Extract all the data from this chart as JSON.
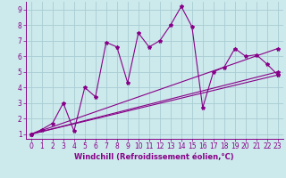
{
  "xlabel": "Windchill (Refroidissement éolien,°C)",
  "ylabel": "",
  "xlim": [
    -0.5,
    23.5
  ],
  "ylim": [
    0.7,
    9.5
  ],
  "xticks": [
    0,
    1,
    2,
    3,
    4,
    5,
    6,
    7,
    8,
    9,
    10,
    11,
    12,
    13,
    14,
    15,
    16,
    17,
    18,
    19,
    20,
    21,
    22,
    23
  ],
  "yticks": [
    1,
    2,
    3,
    4,
    5,
    6,
    7,
    8,
    9
  ],
  "background_color": "#cce9ec",
  "grid_color": "#a8cdd4",
  "line_color": "#880088",
  "line1_x": [
    0,
    1,
    2,
    3,
    4,
    5,
    6,
    7,
    8,
    9,
    10,
    11,
    12,
    13,
    14,
    15,
    16,
    17,
    18,
    19,
    20,
    21,
    22,
    23
  ],
  "line1_y": [
    1.0,
    1.3,
    1.7,
    3.0,
    1.2,
    4.0,
    3.4,
    6.9,
    6.6,
    4.3,
    7.5,
    6.6,
    7.0,
    8.0,
    9.2,
    7.9,
    2.7,
    5.0,
    5.3,
    6.5,
    6.0,
    6.1,
    5.5,
    4.8
  ],
  "line2_x": [
    0,
    23
  ],
  "line2_y": [
    1.0,
    4.8
  ],
  "line3_x": [
    0,
    23
  ],
  "line3_y": [
    1.0,
    5.0
  ],
  "line4_x": [
    0,
    23
  ],
  "line4_y": [
    1.0,
    6.5
  ],
  "marker": "*",
  "markersize": 3,
  "linewidth": 0.8,
  "xlabel_fontsize": 6,
  "tick_fontsize": 5.5
}
